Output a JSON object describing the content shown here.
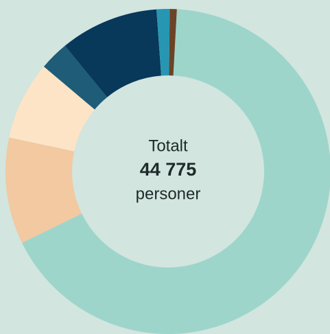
{
  "chart_data": {
    "type": "donut",
    "categories": [
      null,
      null,
      null,
      null,
      null,
      null,
      null
    ],
    "values": [
      66.9,
      10.6,
      7.8,
      2.9,
      9.8,
      1.3,
      0.7
    ],
    "colors": [
      "#9dd5cb",
      "#f2c9a0",
      "#fde4c6",
      "#1e5c78",
      "#08385a",
      "#2796b2",
      "#6b4428"
    ],
    "center_text": [
      "Totalt",
      "44 775",
      "personer"
    ]
  }
}
